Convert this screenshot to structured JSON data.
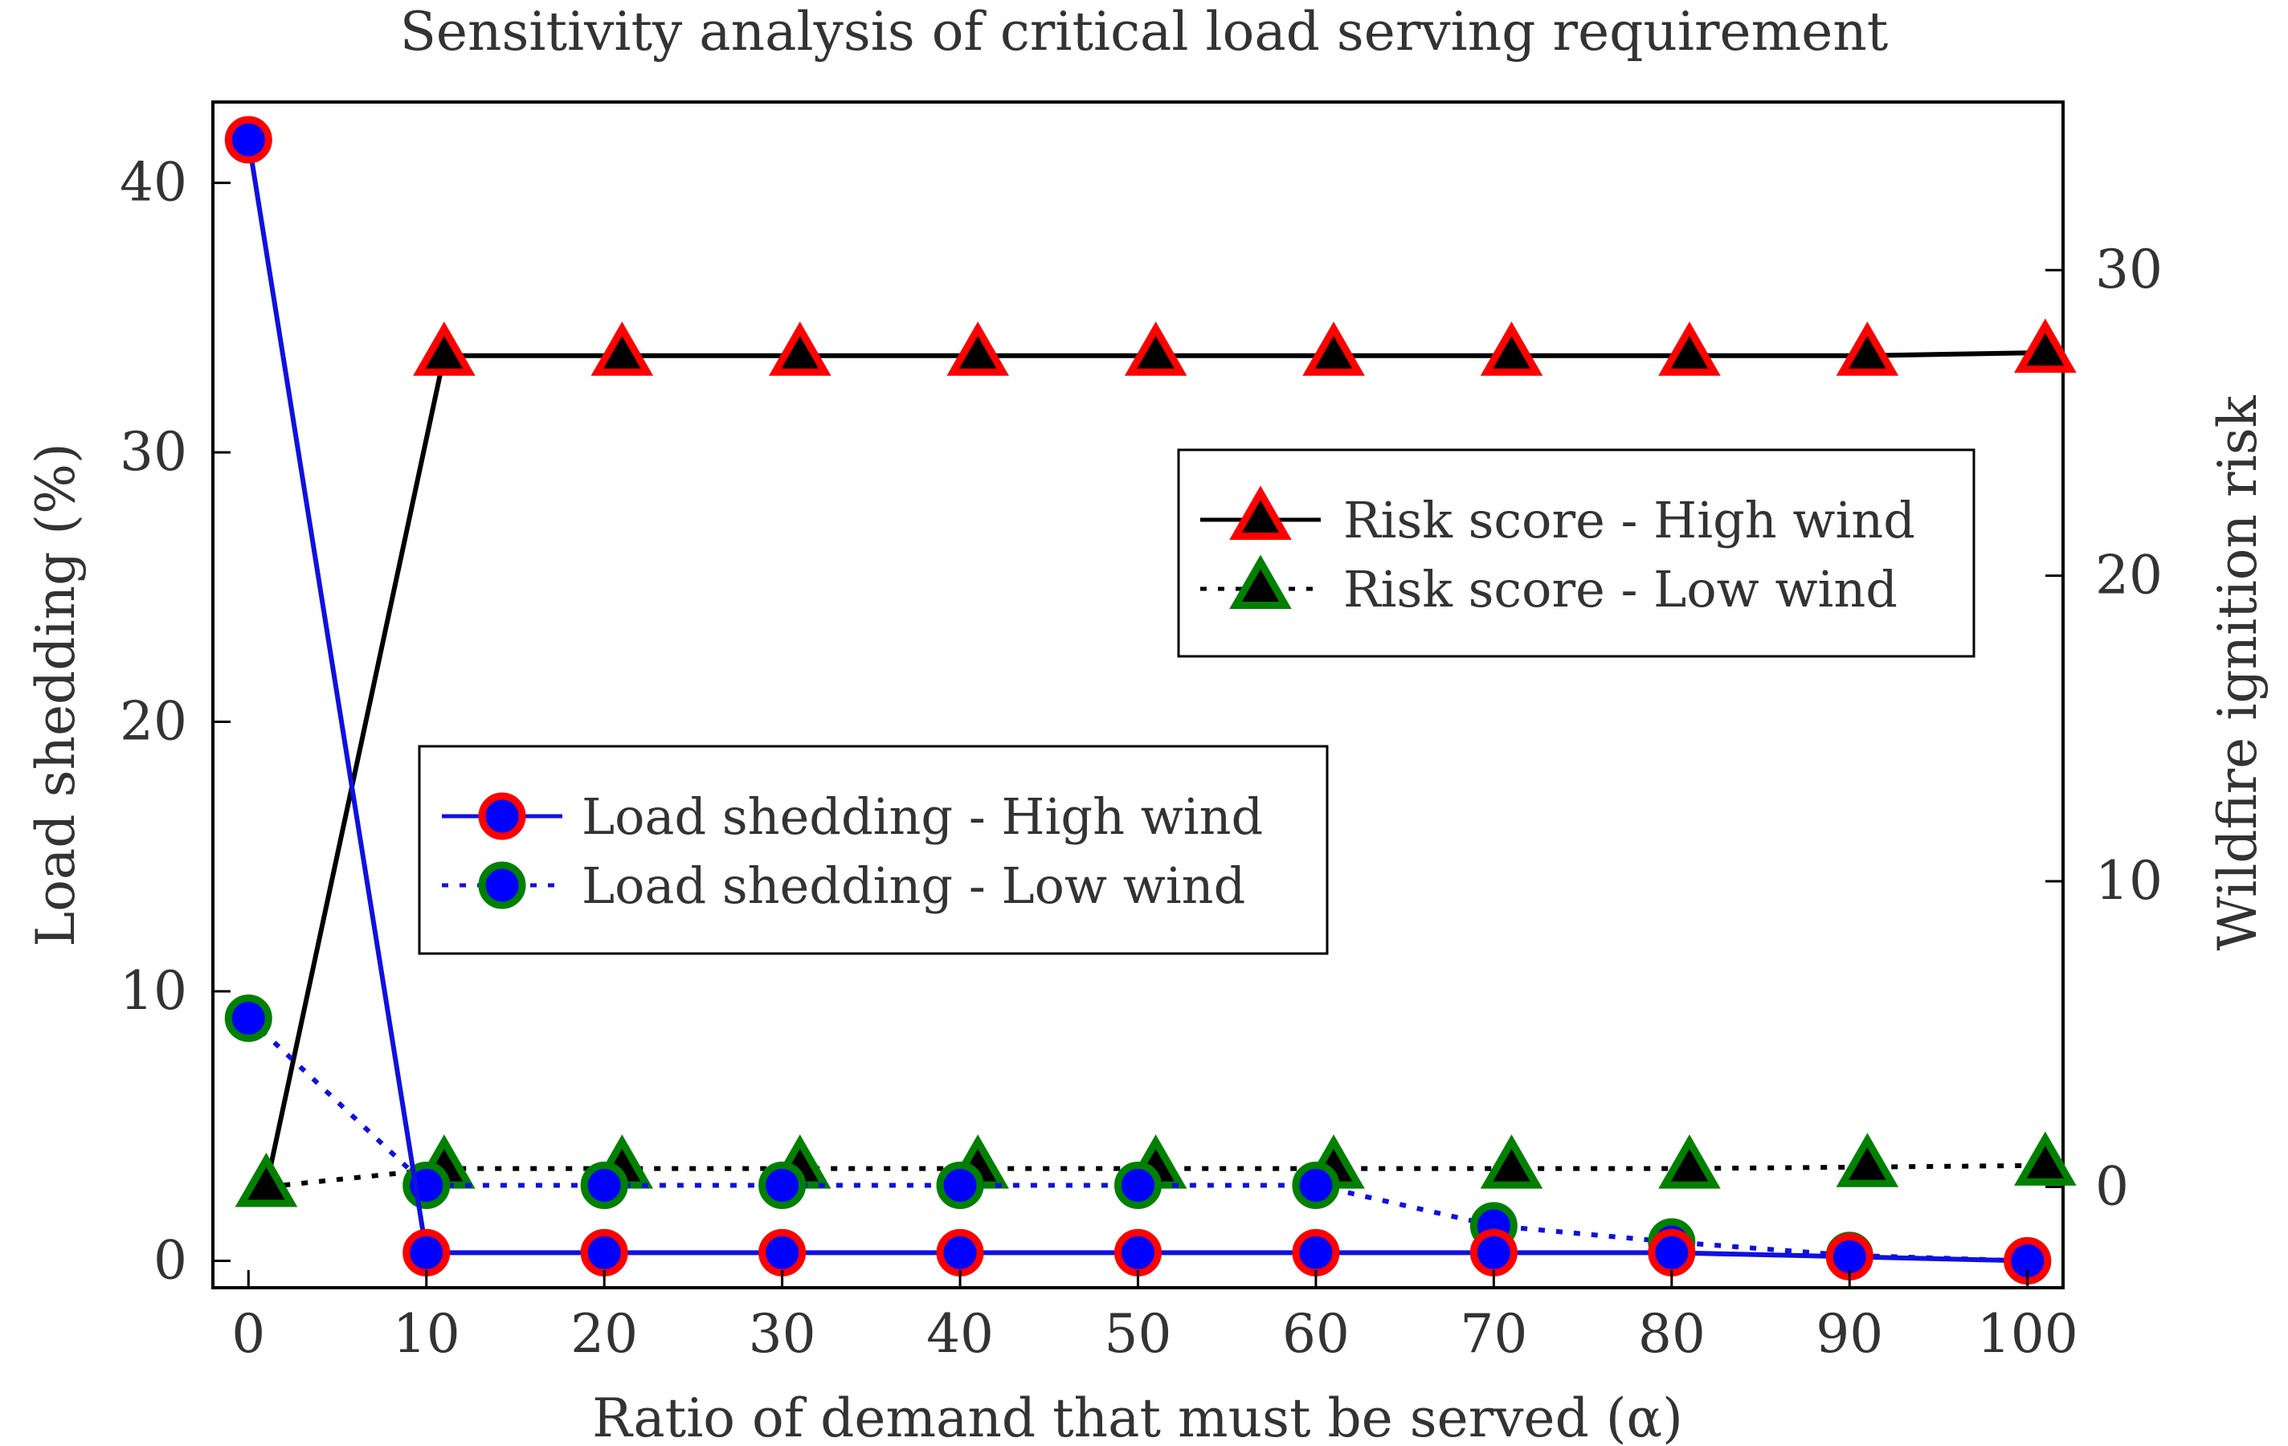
{
  "chart_data": {
    "type": "line",
    "title": "Sensitivity analysis of critical load serving requirement",
    "xlabel": "Ratio of demand that must be served (α)",
    "ylabel_left": "Load shedding (%)",
    "ylabel_right": "Wildfire ignition risk",
    "x": [
      0,
      10,
      20,
      30,
      40,
      50,
      60,
      70,
      80,
      90,
      100
    ],
    "xlim": [
      -2,
      102
    ],
    "ylim_left": [
      -1,
      43
    ],
    "ylim_right": [
      -3.3,
      35.5
    ],
    "xticks": [
      0,
      10,
      20,
      30,
      40,
      50,
      60,
      70,
      80,
      90,
      100
    ],
    "xtick_labels": [
      "0",
      "10",
      "20",
      "30",
      "40",
      "50",
      "60",
      "70",
      "80",
      "90",
      "100"
    ],
    "yticks_left": [
      0,
      10,
      20,
      30,
      40
    ],
    "ytick_labels_left": [
      "0",
      "10",
      "20",
      "30",
      "40"
    ],
    "yticks_right": [
      0,
      10,
      20,
      30
    ],
    "ytick_labels_right": [
      "0",
      "10",
      "20",
      "30"
    ],
    "grid": false,
    "series": [
      {
        "name": "Load shedding - High wind",
        "axis": "left",
        "line_color": "#1010e0",
        "line_style": "solid",
        "marker": "circle",
        "marker_face": "#0000ff",
        "marker_edge": "#ff0000",
        "values": [
          41.6,
          0.3,
          0.3,
          0.3,
          0.3,
          0.3,
          0.3,
          0.3,
          0.3,
          0.15,
          0.0
        ]
      },
      {
        "name": "Load shedding - Low wind",
        "axis": "left",
        "line_color": "#1010e0",
        "line_style": "dotted",
        "marker": "circle",
        "marker_face": "#0000ff",
        "marker_edge": "#008000",
        "values": [
          9.0,
          2.8,
          2.8,
          2.8,
          2.8,
          2.8,
          2.8,
          1.3,
          0.7,
          0.2,
          0.0
        ]
      },
      {
        "name": "Risk score - High wind",
        "axis": "right",
        "line_color": "#000000",
        "line_style": "solid",
        "marker": "triangle",
        "marker_face": "#000000",
        "marker_edge": "#ff0000",
        "x_override": [
          1,
          11,
          21,
          31,
          41,
          51,
          61,
          71,
          81,
          91,
          101
        ],
        "values": [
          0.0,
          27.2,
          27.2,
          27.2,
          27.2,
          27.2,
          27.2,
          27.2,
          27.2,
          27.2,
          27.3
        ]
      },
      {
        "name": "Risk score - Low wind",
        "axis": "right",
        "line_color": "#000000",
        "line_style": "dotted",
        "marker": "triangle",
        "marker_face": "#000000",
        "marker_edge": "#008000",
        "x_override": [
          1,
          11,
          21,
          31,
          41,
          51,
          61,
          71,
          81,
          91,
          101
        ],
        "values": [
          0.0,
          0.6,
          0.6,
          0.6,
          0.6,
          0.6,
          0.6,
          0.6,
          0.6,
          0.65,
          0.7
        ]
      }
    ],
    "legends": [
      {
        "position": "center-right",
        "entries": [
          "Risk score - High wind",
          "Risk score - Low wind"
        ]
      },
      {
        "position": "center-left",
        "entries": [
          "Load shedding - High wind",
          "Load shedding - Low wind"
        ]
      }
    ]
  }
}
